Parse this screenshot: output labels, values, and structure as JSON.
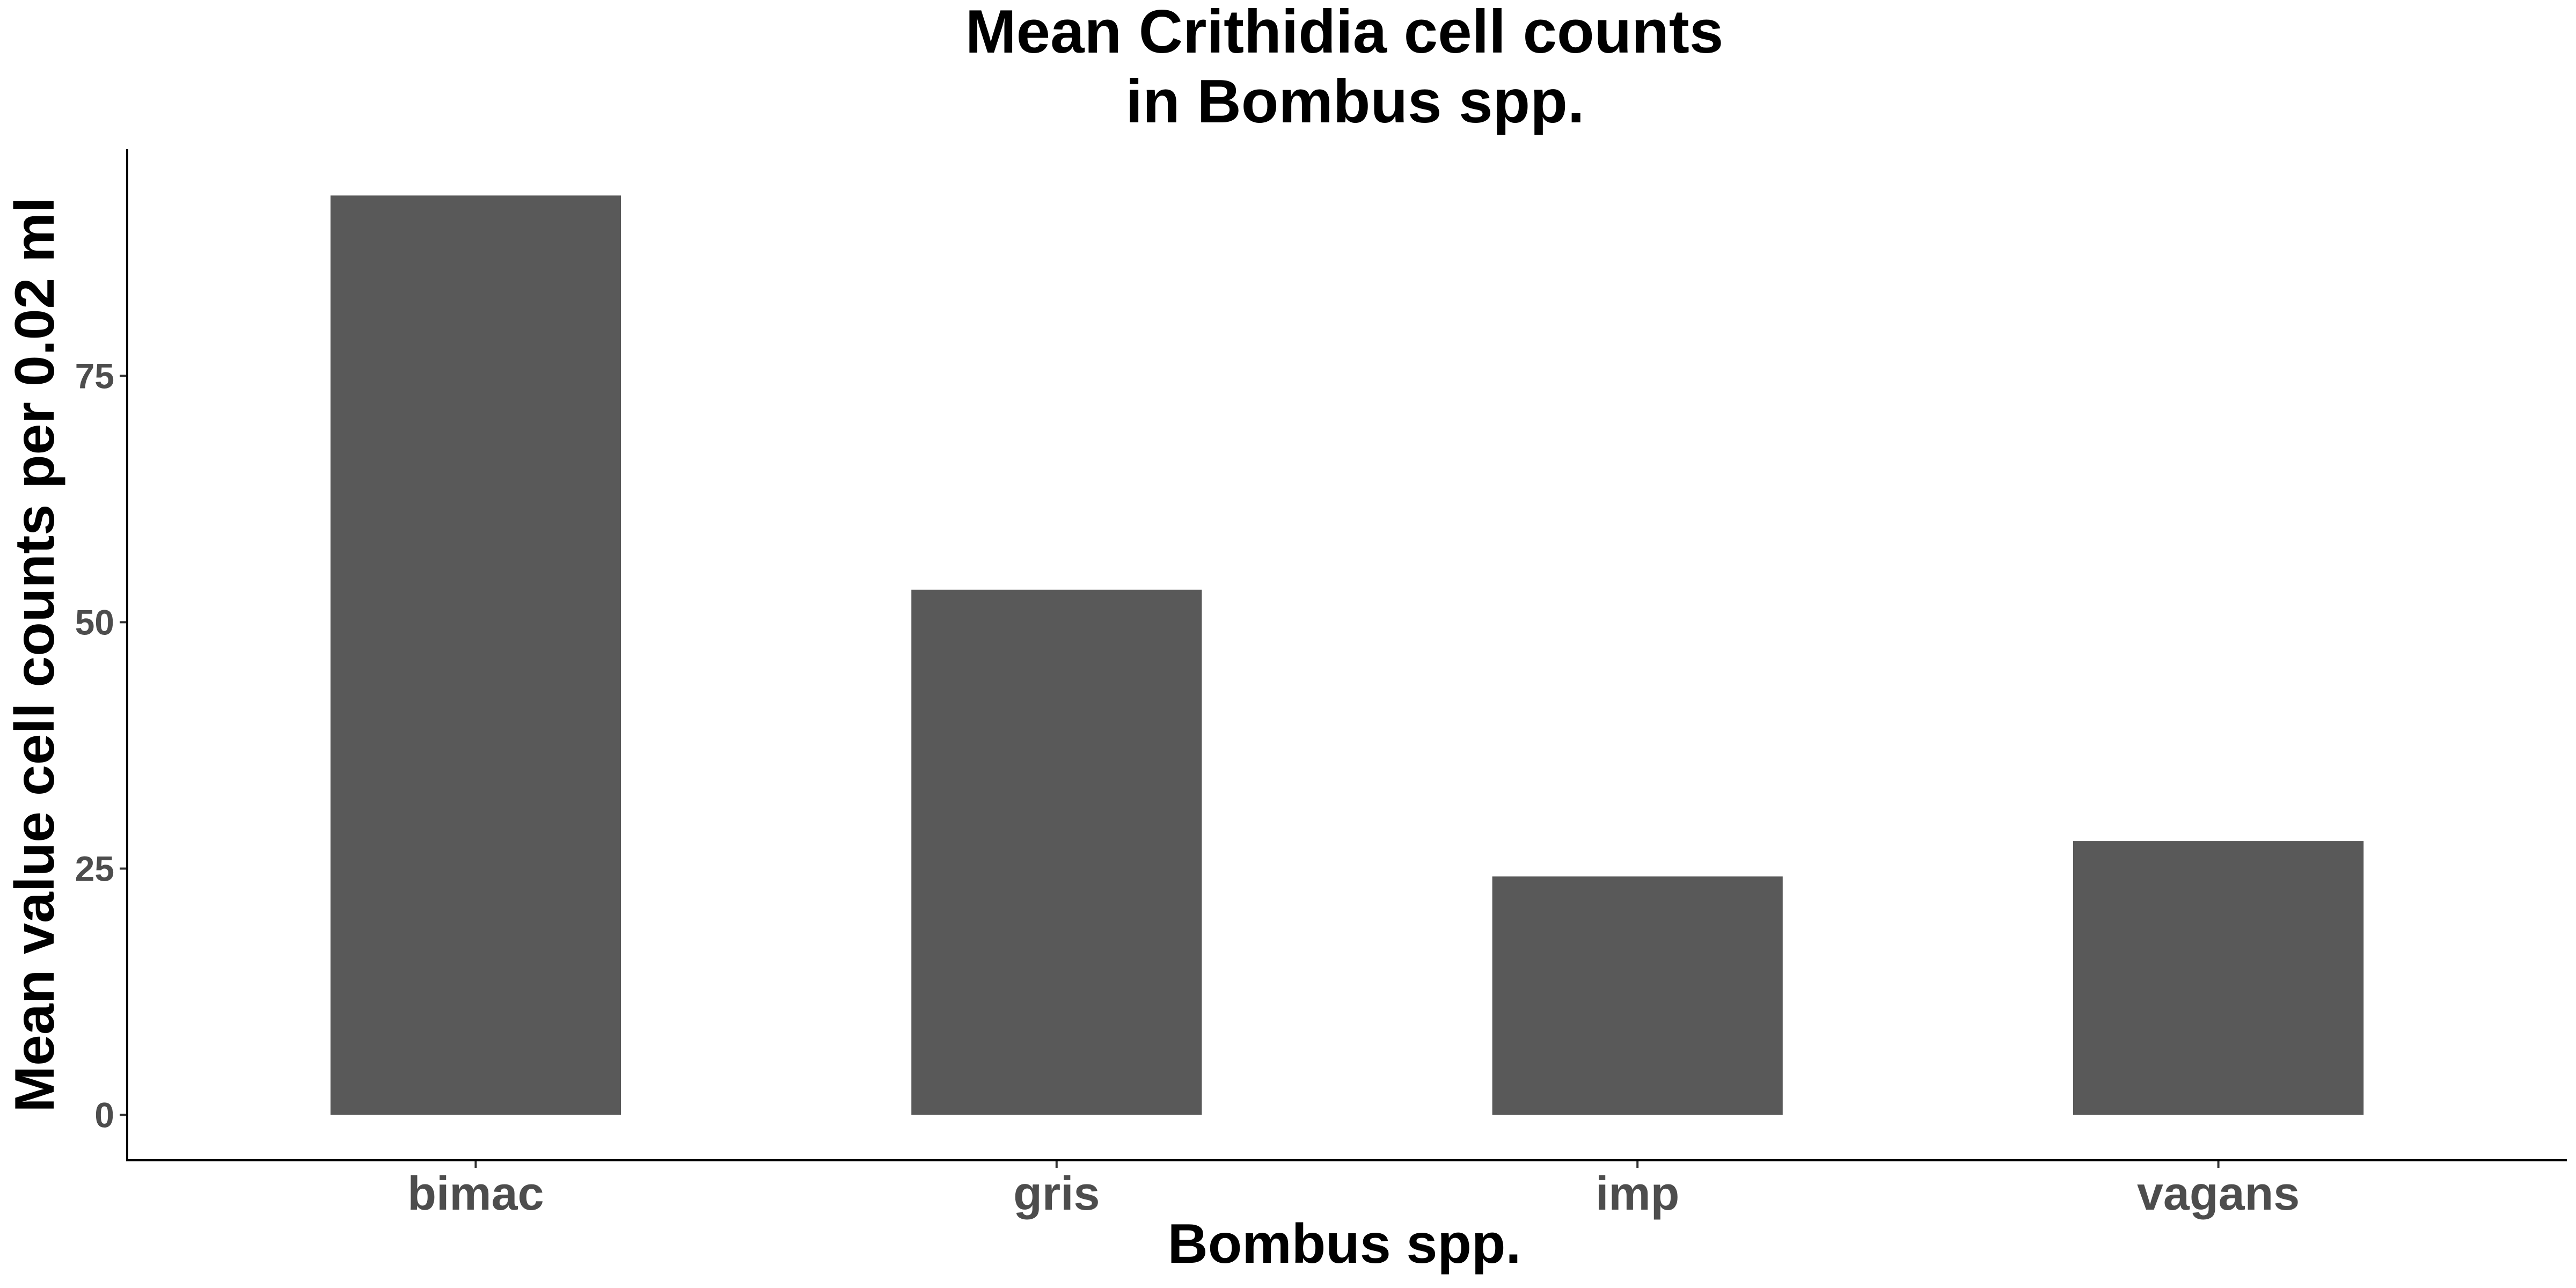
{
  "chart_data": {
    "type": "bar",
    "title_lines": [
      "Mean Crithidia cell counts",
      "in Bombus spp."
    ],
    "xlabel": "Bombus spp.",
    "ylabel": "Mean value cell counts per 0.02 ml",
    "categories": [
      "bimac",
      "gris",
      "imp",
      "vagans"
    ],
    "values": [
      93.3,
      53.3,
      24.2,
      27.8
    ],
    "yticks": [
      0,
      25,
      50,
      75
    ],
    "ylim": [
      -4.6,
      98
    ],
    "grid": false,
    "legend": "none",
    "bar_color": "#595959"
  }
}
